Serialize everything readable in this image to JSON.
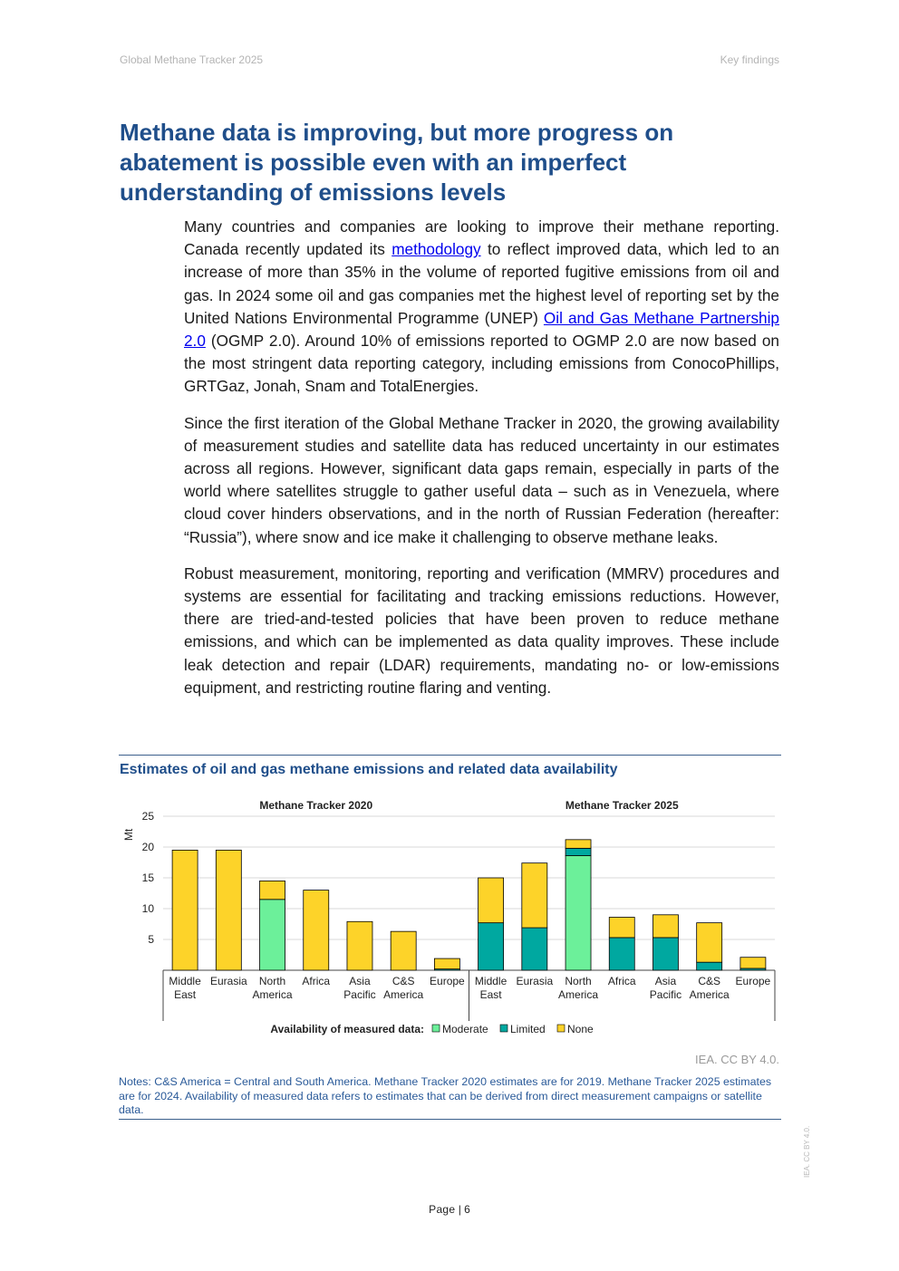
{
  "header": {
    "left": "Global Methane Tracker 2025",
    "right": "Key findings"
  },
  "title": "Methane data is improving, but more progress on abatement is possible even with an imperfect understanding of emissions levels",
  "paragraphs": {
    "p1": {
      "t1": "Many countries and companies are looking to improve their methane reporting. Canada recently updated its ",
      "link1": "methodology",
      "t2": " to reflect improved data, which led to an increase of more than 35% in the volume of reported fugitive emissions from oil and gas. In 2024 some oil and gas companies met the highest level of reporting set by the United Nations Environmental Programme (UNEP) ",
      "link2": "Oil and Gas Methane Partnership 2.0",
      "t3": " (OGMP 2.0). Around 10% of emissions reported to OGMP 2.0 are now based on the most stringent data reporting category, including emissions from ConocoPhillips, GRTGaz, Jonah, Snam and TotalEnergies."
    },
    "p2": "Since the first iteration of the Global Methane Tracker in 2020, the growing availability of measurement studies and satellite data has reduced uncertainty in our estimates across all regions. However, significant data gaps remain, especially in parts of the world where satellites struggle to gather useful data – such as in Venezuela, where cloud cover hinders observations, and in the north of Russian Federation (hereafter: “Russia”), where snow and ice make it challenging to observe methane leaks.",
    "p3": "Robust measurement, monitoring, reporting and verification (MMRV) procedures and systems are essential for facilitating and tracking emissions reductions. However, there are tried-and-tested policies that have been proven to reduce methane emissions, and which can be implemented as data quality improves. These include leak detection and repair (LDAR) requirements, mandating no- or low-emissions equipment, and restricting routine flaring and venting."
  },
  "figure_title": "Estimates of oil and gas methane emissions and related data availability",
  "chart_data": {
    "type": "bar",
    "stacked": true,
    "ylabel": "Mt",
    "ylim": [
      0,
      25
    ],
    "yticks": [
      5,
      10,
      15,
      20,
      25
    ],
    "grid": true,
    "groups": [
      {
        "title": "Methane Tracker 2020",
        "categories": [
          [
            "Middle",
            "East"
          ],
          [
            "Eurasia"
          ],
          [
            "North",
            "America"
          ],
          [
            "Africa"
          ],
          [
            "Asia",
            "Pacific"
          ],
          [
            "C&S",
            "America"
          ],
          [
            "Europe"
          ]
        ],
        "series": [
          {
            "name": "Moderate",
            "values": [
              0,
              0,
              11.5,
              0,
              0,
              0,
              0
            ]
          },
          {
            "name": "Limited",
            "values": [
              0,
              0,
              0,
              0,
              0,
              0,
              0.2
            ]
          },
          {
            "name": "None",
            "values": [
              19.5,
              19.5,
              3.0,
              13.0,
              7.9,
              6.3,
              1.7
            ]
          }
        ]
      },
      {
        "title": "Methane Tracker 2025",
        "categories": [
          [
            "Middle",
            "East"
          ],
          [
            "Eurasia"
          ],
          [
            "North",
            "America"
          ],
          [
            "Africa"
          ],
          [
            "Asia",
            "Pacific"
          ],
          [
            "C&S",
            "America"
          ],
          [
            "Europe"
          ]
        ],
        "series": [
          {
            "name": "Moderate",
            "values": [
              0,
              0,
              18.6,
              0,
              0,
              0,
              0
            ]
          },
          {
            "name": "Limited",
            "values": [
              7.7,
              6.9,
              1.2,
              5.3,
              5.3,
              1.3,
              0.3
            ]
          },
          {
            "name": "None",
            "values": [
              7.3,
              10.5,
              1.4,
              3.3,
              3.7,
              6.4,
              1.8
            ]
          }
        ]
      }
    ],
    "legend": {
      "title": "Availability of measured data:",
      "position": "bottom",
      "items": [
        "Moderate",
        "Limited",
        "None"
      ]
    },
    "colors": {
      "Moderate": "#6cf09a",
      "Limited": "#00a8a0",
      "None": "#fdd329"
    }
  },
  "credit": "IEA. CC BY 4.0.",
  "notes": "Notes: C&S America = Central and South America. Methane Tracker 2020 estimates are for 2019. Methane Tracker 2025 estimates are for 2024. Availability of measured data refers to estimates that can be derived from direct measurement campaigns or satellite data.",
  "footer": {
    "page_label": "Page",
    "page_number": "6",
    "side_mark": "IEA. CC BY 4.0."
  }
}
